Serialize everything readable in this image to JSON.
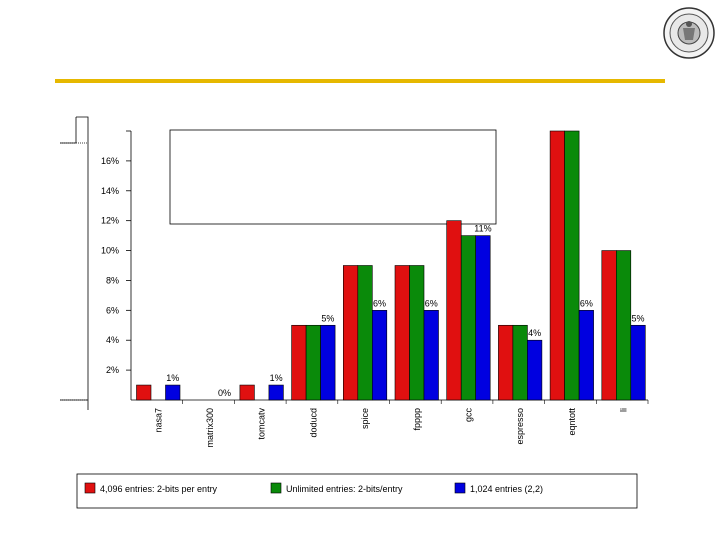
{
  "slide": {
    "accent_color": "#e6b800",
    "logo_icon": "university-seal-icon"
  },
  "chart_data": {
    "type": "bar",
    "ylim": [
      0,
      18
    ],
    "yticks": [
      2,
      4,
      6,
      8,
      10,
      12,
      14,
      16
    ],
    "ytick_labels": [
      "2%",
      "4%",
      "6%",
      "8%",
      "10%",
      "12%",
      "14%",
      "16%"
    ],
    "categories": [
      "nasa7",
      "matrix300",
      "tomcatv",
      "doducd",
      "spice",
      "fpppp",
      "gcc",
      "espresso",
      "eqntott",
      "li"
    ],
    "series": [
      {
        "name": "4,096 entries: 2-bits per entry",
        "color": "#e01010",
        "values": [
          1,
          0,
          1,
          5,
          9,
          9,
          12,
          5,
          18,
          10
        ]
      },
      {
        "name": "Unlimited entries: 2-bits/entry",
        "color": "#0a8a0a",
        "values": [
          0,
          0,
          0,
          5,
          9,
          9,
          11,
          5,
          18,
          10
        ]
      },
      {
        "name": "1,024 entries (2,2)",
        "color": "#0000e0",
        "values": [
          1,
          0,
          1,
          5,
          6,
          6,
          11,
          4,
          6,
          5
        ]
      }
    ],
    "bar_labels": [
      "1%",
      "0%",
      "1%",
      "5%",
      "6%",
      "6%",
      "11%",
      "4%",
      "6%",
      "5%"
    ]
  }
}
